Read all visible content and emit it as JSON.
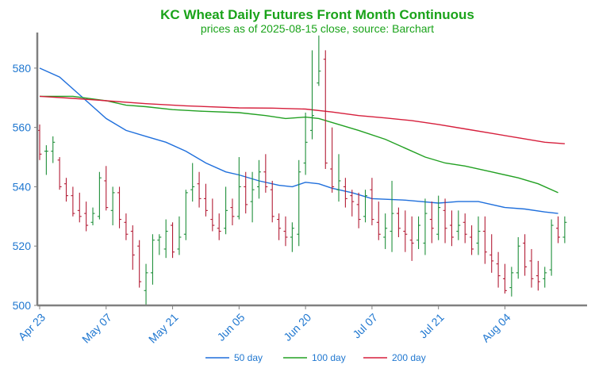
{
  "colors": {
    "title": "#1aa31a",
    "axis_text": "#1f77d0",
    "axis_line": "#808080",
    "up_bar": "#1f8f3a",
    "down_bar": "#b31d36",
    "ma50": "#1f6fdc",
    "ma100": "#22a022",
    "ma200": "#d61f3c"
  },
  "chart_data": {
    "type": "ohlc",
    "title": "KC Wheat Daily Futures Front Month Continuous",
    "subtitle": "prices as of 2025-08-15 close, source: Barchart",
    "ylim": [
      500,
      592
    ],
    "yticks": [
      500,
      520,
      540,
      560,
      580
    ],
    "xlim": [
      0,
      82
    ],
    "xticks": [
      {
        "label": "Apr 23",
        "i": 0
      },
      {
        "label": "May 07",
        "i": 10
      },
      {
        "label": "May 21",
        "i": 20
      },
      {
        "label": "Jun 05",
        "i": 30
      },
      {
        "label": "Jun 20",
        "i": 40
      },
      {
        "label": "Jul 07",
        "i": 50
      },
      {
        "label": "Jul 21",
        "i": 60
      },
      {
        "label": "Aug 04",
        "i": 70
      }
    ],
    "grid": false,
    "legend_position": "bottom",
    "ohlc": [
      [
        559,
        561,
        549,
        551
      ],
      [
        552,
        554,
        544,
        552
      ],
      [
        552,
        557,
        548,
        555
      ],
      [
        549,
        550,
        539,
        540
      ],
      [
        541,
        543,
        535,
        537
      ],
      [
        537,
        540,
        530,
        531
      ],
      [
        532,
        538,
        528,
        530
      ],
      [
        531,
        535,
        525,
        527
      ],
      [
        528,
        533,
        527,
        531
      ],
      [
        530,
        545,
        529,
        543
      ],
      [
        542,
        547,
        532,
        533
      ],
      [
        532,
        540,
        527,
        538
      ],
      [
        538,
        540,
        526,
        529
      ],
      [
        528,
        531,
        522,
        524
      ],
      [
        525,
        527,
        512,
        517
      ],
      [
        520,
        522,
        506,
        508
      ],
      [
        505,
        514,
        500,
        511
      ],
      [
        511,
        524,
        507,
        522
      ],
      [
        522,
        524,
        517,
        523
      ],
      [
        519,
        529,
        516,
        525
      ],
      [
        527,
        528,
        516,
        518
      ],
      [
        519,
        530,
        517,
        523
      ],
      [
        524,
        539,
        522,
        538
      ],
      [
        539,
        548,
        535,
        540
      ],
      [
        541,
        545,
        533,
        536
      ],
      [
        536,
        541,
        530,
        532
      ],
      [
        529,
        536,
        525,
        527
      ],
      [
        526,
        531,
        522,
        525
      ],
      [
        526,
        540,
        524,
        532
      ],
      [
        533,
        536,
        527,
        530
      ],
      [
        530,
        550,
        529,
        540
      ],
      [
        540,
        545,
        531,
        534
      ],
      [
        535,
        545,
        528,
        539
      ],
      [
        540,
        549,
        536,
        545
      ],
      [
        545,
        551,
        538,
        540
      ],
      [
        539,
        542,
        528,
        530
      ],
      [
        529,
        531,
        522,
        526
      ],
      [
        525,
        530,
        520,
        523
      ],
      [
        523,
        528,
        518,
        526
      ],
      [
        524,
        549,
        520,
        545
      ],
      [
        548,
        565,
        544,
        555
      ],
      [
        559,
        586,
        556,
        564
      ],
      [
        575,
        591,
        574,
        579
      ],
      [
        583,
        586,
        546,
        548
      ],
      [
        546,
        560,
        538,
        540
      ],
      [
        539,
        551,
        535,
        542
      ],
      [
        540,
        543,
        533,
        536
      ],
      [
        537,
        539,
        530,
        535
      ],
      [
        534,
        538,
        526,
        529
      ],
      [
        530,
        539,
        528,
        537
      ],
      [
        539,
        543,
        527,
        529
      ],
      [
        528,
        535,
        522,
        524
      ],
      [
        523,
        531,
        519,
        526
      ],
      [
        525,
        542,
        518,
        531
      ],
      [
        531,
        533,
        523,
        526
      ],
      [
        525,
        532,
        518,
        524
      ],
      [
        522,
        530,
        515,
        521
      ],
      [
        522,
        530,
        519,
        527
      ],
      [
        521,
        536,
        517,
        531
      ],
      [
        529,
        535,
        521,
        526
      ],
      [
        524,
        537,
        522,
        533
      ],
      [
        532,
        536,
        521,
        526
      ],
      [
        527,
        532,
        520,
        523
      ],
      [
        525,
        532,
        522,
        527
      ],
      [
        528,
        531,
        521,
        524
      ],
      [
        523,
        527,
        517,
        519
      ],
      [
        521,
        530,
        517,
        525
      ],
      [
        525,
        530,
        514,
        518
      ],
      [
        517,
        524,
        511,
        515
      ],
      [
        514,
        518,
        506,
        510
      ],
      [
        509,
        514,
        504,
        505
      ],
      [
        506,
        513,
        503,
        511
      ],
      [
        511,
        523,
        509,
        520
      ],
      [
        521,
        524,
        510,
        513
      ],
      [
        515,
        519,
        506,
        509
      ],
      [
        510,
        515,
        505,
        508
      ],
      [
        509,
        513,
        506,
        511
      ],
      [
        512,
        529,
        510,
        527
      ],
      [
        526,
        530,
        521,
        523
      ],
      [
        523,
        530,
        521,
        528
      ]
    ],
    "series": [
      {
        "name": "50 day",
        "color_key": "ma50",
        "points": [
          [
            0,
            580
          ],
          [
            3,
            577
          ],
          [
            6,
            571
          ],
          [
            10,
            563
          ],
          [
            13,
            559
          ],
          [
            16,
            557
          ],
          [
            19,
            555
          ],
          [
            22,
            552
          ],
          [
            25,
            548
          ],
          [
            28,
            545
          ],
          [
            30,
            544
          ],
          [
            33,
            542
          ],
          [
            36,
            540.5
          ],
          [
            38,
            540
          ],
          [
            40,
            541.5
          ],
          [
            42,
            541
          ],
          [
            44,
            539.5
          ],
          [
            47,
            538
          ],
          [
            50,
            536
          ],
          [
            55,
            535.5
          ],
          [
            60,
            534.5
          ],
          [
            63,
            535
          ],
          [
            66,
            535
          ],
          [
            70,
            533
          ],
          [
            73,
            532.5
          ],
          [
            76,
            531.5
          ],
          [
            78,
            531
          ]
        ]
      },
      {
        "name": "100 day",
        "color_key": "ma100",
        "points": [
          [
            0,
            570.5
          ],
          [
            5,
            570.5
          ],
          [
            10,
            569
          ],
          [
            13,
            567.5
          ],
          [
            16,
            567
          ],
          [
            20,
            566
          ],
          [
            24,
            565.5
          ],
          [
            30,
            565
          ],
          [
            34,
            564
          ],
          [
            37,
            563
          ],
          [
            40,
            563.5
          ],
          [
            42,
            563
          ],
          [
            45,
            561
          ],
          [
            48,
            559
          ],
          [
            52,
            556
          ],
          [
            55,
            553
          ],
          [
            58,
            550
          ],
          [
            61,
            548
          ],
          [
            64,
            547
          ],
          [
            68,
            545
          ],
          [
            72,
            543
          ],
          [
            75,
            541
          ],
          [
            78,
            538
          ]
        ]
      },
      {
        "name": "200 day",
        "color_key": "ma200",
        "points": [
          [
            0,
            570.5
          ],
          [
            5,
            569.8
          ],
          [
            10,
            569
          ],
          [
            16,
            568
          ],
          [
            22,
            567.3
          ],
          [
            30,
            566.6
          ],
          [
            35,
            566.5
          ],
          [
            40,
            566.2
          ],
          [
            44,
            565.2
          ],
          [
            48,
            564
          ],
          [
            52,
            563.2
          ],
          [
            56,
            562.3
          ],
          [
            60,
            561
          ],
          [
            64,
            559.5
          ],
          [
            68,
            558
          ],
          [
            72,
            556.5
          ],
          [
            76,
            555
          ],
          [
            79,
            554.5
          ]
        ]
      }
    ]
  }
}
